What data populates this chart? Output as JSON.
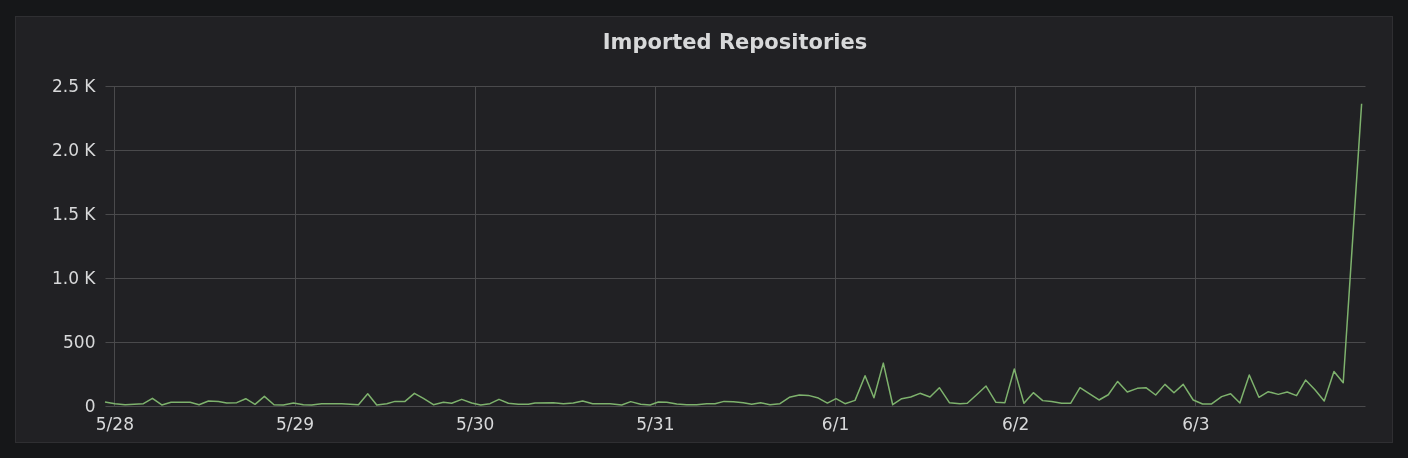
{
  "chart_data": {
    "type": "line",
    "title": "Imported Repositories",
    "x": [
      "--05-27T22:45",
      "--05-28T00:05",
      "--05-28T01:26",
      "--05-28T03:52",
      "--05-28T05:04",
      "--05-28T06:19",
      "--05-28T07:33",
      "--05-28T10:05",
      "--05-28T11:17",
      "--05-28T12:32",
      "--05-28T13:52",
      "--05-28T14:58",
      "--05-28T16:18",
      "--05-28T17:30",
      "--05-28T18:44",
      "--05-28T19:59",
      "--05-28T21:16",
      "--05-28T22:31",
      "--05-28T23:51",
      "--05-29T01:11",
      "--05-29T02:17",
      "--05-29T03:37",
      "--05-29T06:17",
      "--05-29T08:31",
      "--05-29T09:45",
      "--05-29T10:57",
      "--05-29T12:17",
      "--05-29T13:23",
      "--05-29T14:43",
      "--05-29T15:58",
      "--05-29T17:10",
      "--05-29T18:30",
      "--05-29T19:50",
      "--05-29T20:56",
      "--05-29T22:16",
      "--05-29T23:36",
      "--05-30T00:48",
      "--05-30T02:02",
      "--05-30T03:14",
      "--05-30T04:29",
      "--05-30T05:49",
      "--05-30T07:09",
      "--05-30T08:02",
      "--05-30T10:29",
      "--05-30T11:49",
      "--05-30T13:08",
      "--05-30T14:23",
      "--05-30T15:43",
      "--05-30T18:02",
      "--05-30T19:35",
      "--05-30T20:47",
      "--05-30T22:07",
      "--05-30T23:22",
      "--05-31T00:28",
      "--05-31T01:35",
      "--05-31T02:55",
      "--05-31T04:14",
      "--05-31T05:34",
      "--05-31T06:54",
      "--05-31T08:01",
      "--05-31T09:13",
      "--05-31T10:28",
      "--05-31T11:47",
      "--05-31T12:54",
      "--05-31T14:06",
      "--05-31T15:20",
      "--05-31T16:40",
      "--05-31T17:55",
      "--05-31T19:15",
      "--05-31T20:27",
      "--05-31T21:47",
      "--05-31T22:59",
      "--06-01T00:08",
      "--06-01T01:20",
      "--06-01T02:40",
      "--06-01T04:00",
      "--06-01T05:11",
      "--06-01T06:26",
      "--06-01T07:41",
      "--06-01T08:53",
      "--06-01T10:05",
      "--06-01T11:19",
      "--06-01T12:39",
      "--06-01T13:54",
      "--06-01T15:14",
      "--06-01T16:39",
      "--06-01T17:37",
      "--06-01T18:52",
      "--06-01T20:07",
      "--06-01T21:26",
      "--06-01T22:38",
      "--06-01T23:53",
      "--06-02T01:10",
      "--06-02T02:25",
      "--06-02T03:40",
      "--06-02T04:51",
      "--06-02T06:11",
      "--06-02T07:23",
      "--06-02T08:38",
      "--06-02T09:52",
      "--06-02T11:10",
      "--06-02T12:24",
      "--06-02T13:39",
      "--06-02T14:56",
      "--06-02T16:16",
      "--06-02T17:25",
      "--06-02T18:43",
      "--06-02T19:57",
      "--06-02T21:09",
      "--06-02T22:23",
      "--06-02T23:43",
      "--06-03T00:58",
      "--06-03T02:10",
      "--06-03T03:30",
      "--06-03T04:42",
      "--06-03T05:56",
      "--06-03T07:11",
      "--06-03T08:28",
      "--06-03T09:43",
      "--06-03T11:03",
      "--06-03T12:14",
      "--06-03T13:29",
      "--06-03T14:41",
      "--06-03T15:56",
      "--06-03T17:10",
      "--06-03T18:28",
      "--06-03T19:42",
      "--06-03T22:09"
    ],
    "series": [
      {
        "color": "#7eb26d",
        "values": [
          31,
          18,
          10,
          18,
          60,
          8,
          29,
          29,
          10,
          39,
          36,
          23,
          26,
          57,
          13,
          75,
          10,
          8,
          23,
          10,
          8,
          18,
          18,
          10,
          96,
          8,
          18,
          36,
          36,
          99,
          60,
          10,
          29,
          21,
          52,
          23,
          8,
          18,
          52,
          21,
          13,
          13,
          23,
          26,
          18,
          23,
          39,
          18,
          18,
          8,
          34,
          13,
          8,
          31,
          29,
          16,
          10,
          10,
          18,
          18,
          36,
          34,
          26,
          13,
          26,
          10,
          18,
          68,
          86,
          83,
          62,
          23,
          57,
          18,
          44,
          237,
          65,
          335,
          10,
          57,
          70,
          99,
          70,
          143,
          26,
          18,
          21,
          88,
          156,
          29,
          26,
          289,
          21,
          104,
          42,
          36,
          21,
          21,
          143,
          96,
          47,
          88,
          192,
          109,
          138,
          143,
          86,
          169,
          104,
          169,
          47,
          16,
          16,
          73,
          96,
          23,
          242,
          68,
          112,
          91,
          109,
          81,
          203,
          127,
          39,
          270,
          182,
          2361
        ]
      }
    ],
    "xlim": [
      "--05-27T22:45",
      "--06-03T22:36"
    ],
    "xticks": [
      {
        "value": "--05-28",
        "label": "5/28"
      },
      {
        "value": "--05-29",
        "label": "5/29"
      },
      {
        "value": "--05-30",
        "label": "5/30"
      },
      {
        "value": "--05-31",
        "label": "5/31"
      },
      {
        "value": "--06-01",
        "label": "6/1"
      },
      {
        "value": "--06-02",
        "label": "6/2"
      },
      {
        "value": "--06-03",
        "label": "6/3"
      }
    ],
    "ylim": [
      0,
      2500
    ],
    "yticks": [
      0,
      500,
      {
        "value": 1000,
        "label": "1.0 K"
      },
      {
        "value": 1500,
        "label": "1.5 K"
      },
      {
        "value": 2000,
        "label": "2.0 K"
      },
      {
        "value": 2500,
        "label": "2.5 K"
      }
    ],
    "grid": true,
    "marker": "none",
    "line_style": "solid"
  }
}
